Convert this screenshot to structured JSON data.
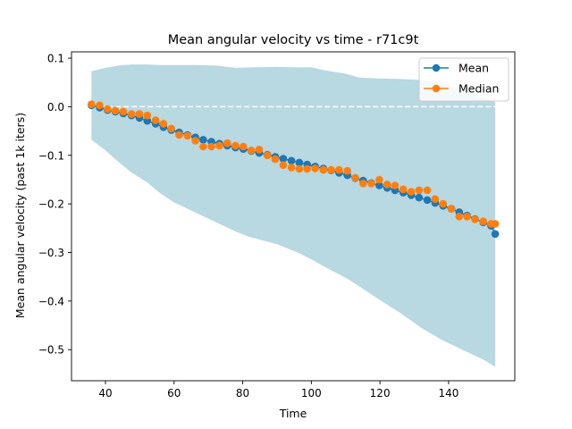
{
  "chart_data": {
    "type": "line",
    "title": "Mean angular velocity vs time - r71c9t",
    "xlabel": "Time",
    "ylabel": "Mean angular velocity (past 1k iters)",
    "xlim": [
      30.1,
      159.3
    ],
    "ylim": [
      -0.564,
      0.113
    ],
    "xticks": [
      40,
      60,
      80,
      100,
      120,
      140
    ],
    "yticks": [
      0.1,
      0.0,
      -0.1,
      -0.2,
      -0.3,
      -0.4,
      -0.5
    ],
    "ytick_labels": [
      "0.1",
      "0.0",
      "−0.1",
      "−0.2",
      "−0.3",
      "−0.4",
      "−0.5"
    ],
    "legend_position": "top-right",
    "reference_line": {
      "y": 0.0,
      "style": "dashed",
      "color": "#ffffff"
    },
    "colors": {
      "mean": "#1f77b4",
      "median": "#ff7f0e",
      "band": "#9ac8d5"
    },
    "x": [
      35.9,
      38.3,
      40.6,
      42.9,
      45.2,
      47.6,
      49.9,
      52.2,
      54.6,
      56.9,
      59.2,
      61.5,
      63.9,
      66.2,
      68.5,
      70.9,
      73.2,
      75.5,
      77.9,
      80.2,
      82.5,
      84.8,
      87.2,
      89.5,
      91.8,
      94.2,
      96.5,
      98.8,
      101.1,
      103.5,
      105.8,
      108.1,
      110.5,
      112.8,
      115.1,
      117.5,
      119.8,
      122.1,
      124.4,
      126.8,
      129.1,
      131.4,
      133.8,
      136.1,
      138.4,
      140.8,
      143.1,
      145.4,
      147.7,
      150.1,
      152.4,
      153.6
    ],
    "series": [
      {
        "name": "Mean",
        "values": [
          0.003,
          -0.002,
          -0.007,
          -0.01,
          -0.014,
          -0.018,
          -0.023,
          -0.029,
          -0.035,
          -0.042,
          -0.048,
          -0.053,
          -0.058,
          -0.063,
          -0.068,
          -0.072,
          -0.076,
          -0.08,
          -0.084,
          -0.087,
          -0.091,
          -0.095,
          -0.099,
          -0.103,
          -0.107,
          -0.111,
          -0.115,
          -0.119,
          -0.123,
          -0.127,
          -0.131,
          -0.136,
          -0.141,
          -0.147,
          -0.152,
          -0.157,
          -0.162,
          -0.167,
          -0.172,
          -0.177,
          -0.182,
          -0.187,
          -0.192,
          -0.198,
          -0.204,
          -0.21,
          -0.217,
          -0.224,
          -0.231,
          -0.238,
          -0.245,
          -0.262
        ],
        "show_line": true
      },
      {
        "name": "Median",
        "values": [
          0.005,
          0.003,
          -0.005,
          -0.008,
          -0.01,
          -0.015,
          -0.015,
          -0.018,
          -0.028,
          -0.035,
          -0.045,
          -0.058,
          -0.06,
          -0.07,
          -0.082,
          -0.082,
          -0.08,
          -0.075,
          -0.08,
          -0.082,
          -0.09,
          -0.088,
          -0.1,
          -0.108,
          -0.12,
          -0.125,
          -0.128,
          -0.128,
          -0.127,
          -0.13,
          -0.13,
          -0.13,
          -0.132,
          -0.146,
          -0.158,
          -0.158,
          -0.15,
          -0.16,
          -0.162,
          -0.17,
          -0.175,
          -0.172,
          -0.172,
          -0.19,
          -0.2,
          -0.21,
          -0.226,
          -0.226,
          -0.232,
          -0.236,
          -0.241,
          -0.241
        ],
        "show_line": false
      }
    ],
    "band": {
      "x": [
        35.9,
        40.0,
        44.0,
        47.5,
        52.0,
        56.0,
        60.0,
        66.0,
        72.0,
        78.0,
        82.0,
        90.0,
        96.0,
        100.0,
        104.0,
        110.0,
        114.0,
        120.0,
        126.0,
        132.0,
        138.0,
        144.0,
        150.0,
        153.6
      ],
      "upper": [
        0.073,
        0.08,
        0.085,
        0.087,
        0.087,
        0.086,
        0.086,
        0.086,
        0.085,
        0.08,
        0.081,
        0.082,
        0.081,
        0.081,
        0.075,
        0.068,
        0.06,
        0.058,
        0.057,
        0.055,
        0.05,
        0.035,
        0.018,
        0.01
      ],
      "lower": [
        -0.068,
        -0.09,
        -0.115,
        -0.135,
        -0.155,
        -0.178,
        -0.197,
        -0.217,
        -0.237,
        -0.257,
        -0.268,
        -0.283,
        -0.3,
        -0.314,
        -0.33,
        -0.352,
        -0.37,
        -0.398,
        -0.425,
        -0.455,
        -0.48,
        -0.5,
        -0.52,
        -0.535
      ]
    }
  }
}
